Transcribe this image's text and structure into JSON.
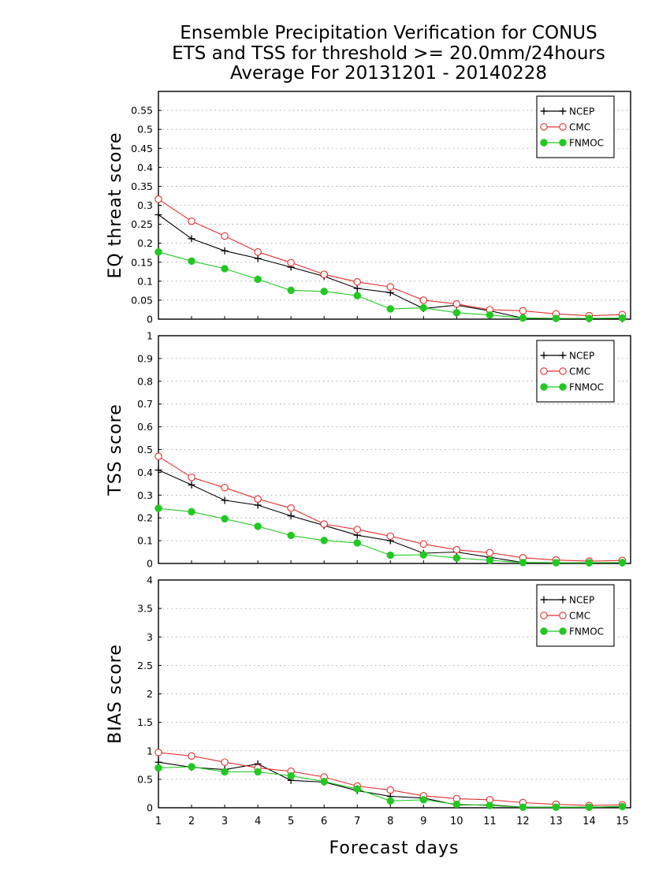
{
  "titles": [
    "Ensemble Precipitation Verification for CONUS",
    "ETS and TSS for threshold >= 20.0mm/24hours",
    "Average For 20131201 - 20140228"
  ],
  "xlabel": "Forecast days",
  "x_ticks": [
    1,
    2,
    3,
    4,
    5,
    6,
    7,
    8,
    9,
    10,
    11,
    12,
    13,
    14,
    15
  ],
  "colors": {
    "NCEP": "#000000",
    "CMC": "#e03030",
    "FNMOC": "#22c822",
    "grid": "#999999"
  },
  "chart_data": [
    {
      "type": "line",
      "ylabel": "EQ threat score",
      "xlim": [
        1,
        15.25
      ],
      "ylim": [
        0,
        0.6
      ],
      "yticks": [
        0,
        0.05,
        0.1,
        0.15,
        0.2,
        0.25,
        0.3,
        0.35,
        0.4,
        0.45,
        0.5,
        0.55
      ],
      "ytick_labels": [
        "0",
        "0.05",
        "0.1",
        "0.15",
        "0.2",
        "0.25",
        "0.3",
        "0.35",
        "0.4",
        "0.45",
        "0.5",
        "0.55"
      ],
      "grid": true,
      "legend_position": "top-right",
      "x": [
        1.0,
        2.0,
        3.0,
        4.0,
        5.0,
        6.0,
        7.0,
        8.0,
        9.0,
        10.0,
        11.0,
        12.0,
        13.0,
        14.0,
        15.0
      ],
      "series": [
        {
          "name": "NCEP",
          "marker": "plus",
          "values": [
            0.275,
            0.212,
            0.18,
            0.16,
            0.137,
            0.113,
            0.081,
            0.07,
            0.028,
            0.037,
            0.022,
            0.003,
            0.002,
            0.001,
            0.001
          ]
        },
        {
          "name": "CMC",
          "marker": "open-circle",
          "values": [
            0.316,
            0.258,
            0.219,
            0.177,
            0.149,
            0.118,
            0.098,
            0.085,
            0.05,
            0.04,
            0.025,
            0.022,
            0.014,
            0.009,
            0.012
          ]
        },
        {
          "name": "FNMOC",
          "marker": "filled-circle",
          "values": [
            0.177,
            0.153,
            0.133,
            0.105,
            0.076,
            0.073,
            0.062,
            0.027,
            0.03,
            0.017,
            0.011,
            0.003,
            0.002,
            0.002,
            0.003
          ]
        }
      ]
    },
    {
      "type": "line",
      "ylabel": "TSS score",
      "xlim": [
        1,
        15.25
      ],
      "ylim": [
        0,
        1
      ],
      "yticks": [
        0,
        0.1,
        0.2,
        0.3,
        0.4,
        0.5,
        0.6,
        0.7,
        0.8,
        0.9,
        1
      ],
      "ytick_labels": [
        "0",
        "0.1",
        "0.2",
        "0.3",
        "0.4",
        "0.5",
        "0.6",
        "0.7",
        "0.8",
        "0.9",
        "1"
      ],
      "grid": true,
      "legend_position": "top-right",
      "x": [
        1.0,
        2.0,
        3.0,
        4.0,
        5.0,
        6.0,
        7.0,
        8.0,
        9.0,
        10.0,
        11.0,
        12.0,
        13.0,
        14.0,
        15.0
      ],
      "series": [
        {
          "name": "NCEP",
          "marker": "plus",
          "values": [
            0.41,
            0.345,
            0.277,
            0.256,
            0.209,
            0.167,
            0.124,
            0.1,
            0.045,
            0.05,
            0.027,
            0.004,
            0.003,
            0.002,
            0.002
          ]
        },
        {
          "name": "CMC",
          "marker": "open-circle",
          "values": [
            0.47,
            0.378,
            0.333,
            0.283,
            0.243,
            0.173,
            0.149,
            0.12,
            0.085,
            0.06,
            0.047,
            0.025,
            0.015,
            0.01,
            0.013
          ]
        },
        {
          "name": "FNMOC",
          "marker": "filled-circle",
          "values": [
            0.242,
            0.227,
            0.196,
            0.163,
            0.123,
            0.101,
            0.09,
            0.036,
            0.038,
            0.024,
            0.014,
            0.004,
            0.003,
            0.003,
            0.004
          ]
        }
      ]
    },
    {
      "type": "line",
      "ylabel": "BIAS score",
      "xlim": [
        1,
        15.25
      ],
      "ylim": [
        0,
        4
      ],
      "yticks": [
        0,
        0.5,
        1,
        1.5,
        2,
        2.5,
        3,
        3.5,
        4
      ],
      "ytick_labels": [
        "0",
        "0.5",
        "1",
        "1.5",
        "2",
        "2.5",
        "3",
        "3.5",
        "4"
      ],
      "grid": true,
      "legend_position": "top-right",
      "x": [
        1.0,
        2.0,
        3.0,
        4.0,
        5.0,
        6.0,
        7.0,
        8.0,
        9.0,
        10.0,
        11.0,
        12.0,
        13.0,
        14.0,
        15.0
      ],
      "series": [
        {
          "name": "NCEP",
          "marker": "plus",
          "values": [
            0.8,
            0.71,
            0.67,
            0.77,
            0.48,
            0.45,
            0.3,
            0.2,
            0.17,
            0.05,
            0.05,
            0.01,
            0.01,
            0.01,
            0.02
          ]
        },
        {
          "name": "CMC",
          "marker": "open-circle",
          "values": [
            0.97,
            0.91,
            0.8,
            0.7,
            0.64,
            0.54,
            0.38,
            0.31,
            0.21,
            0.16,
            0.14,
            0.09,
            0.06,
            0.04,
            0.05
          ]
        },
        {
          "name": "FNMOC",
          "marker": "filled-circle",
          "values": [
            0.7,
            0.72,
            0.63,
            0.63,
            0.56,
            0.46,
            0.33,
            0.12,
            0.14,
            0.06,
            0.04,
            0.01,
            0.01,
            0.01,
            0.02
          ]
        }
      ]
    }
  ]
}
